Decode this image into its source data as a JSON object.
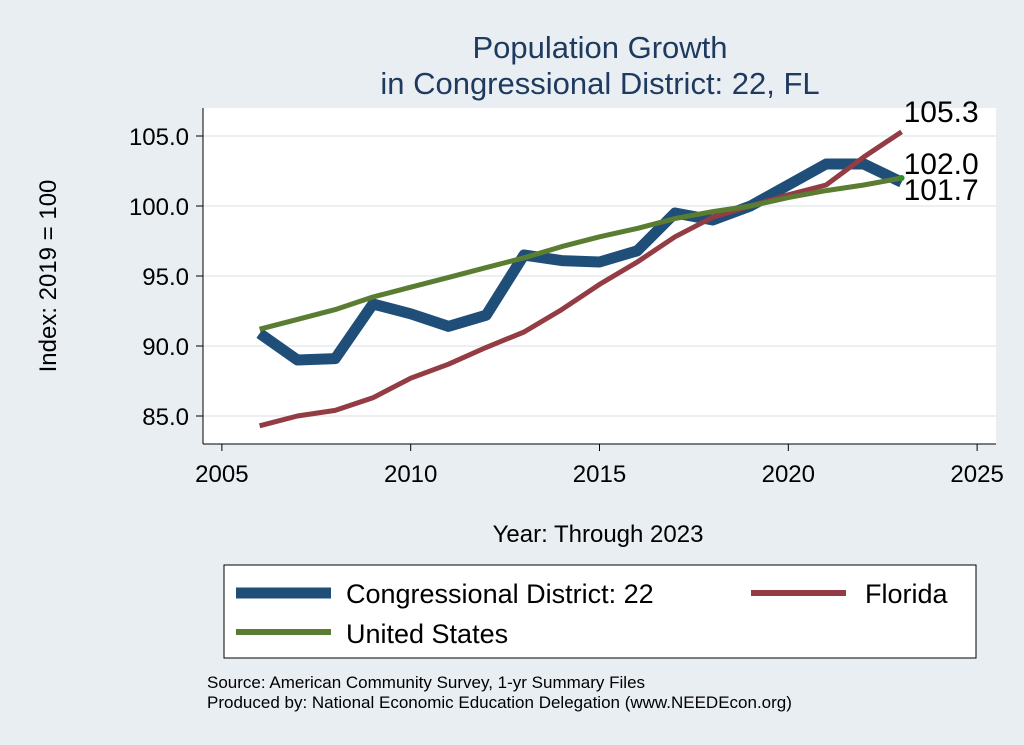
{
  "chart_data": {
    "type": "line",
    "title": [
      "Population Growth",
      "in Congressional District: 22, FL"
    ],
    "xlabel": "Year: Through 2023",
    "ylabel": "Index: 2019 = 100",
    "xlim": [
      2004.5,
      2025.5
    ],
    "ylim": [
      83.0,
      107.0
    ],
    "xticks": [
      2005,
      2010,
      2015,
      2020,
      2025
    ],
    "yticks": [
      85.0,
      90.0,
      95.0,
      100.0,
      105.0
    ],
    "ytick_labels": [
      "85.0",
      "90.0",
      "95.0",
      "100.0",
      "105.0"
    ],
    "grid": true,
    "legend_position": "bottom",
    "x": [
      2006,
      2007,
      2008,
      2009,
      2010,
      2011,
      2012,
      2013,
      2014,
      2015,
      2016,
      2017,
      2018,
      2019,
      2020,
      2021,
      2022,
      2023
    ],
    "series": [
      {
        "name": "Congressional District: 22",
        "color": "#1f4e79",
        "values": [
          90.9,
          89.0,
          89.1,
          93.0,
          92.3,
          91.4,
          92.2,
          96.5,
          96.1,
          96.0,
          96.8,
          99.5,
          99.0,
          100.0,
          101.5,
          103.0,
          103.0,
          101.7
        ],
        "end_label": "101.7"
      },
      {
        "name": "Florida",
        "color": "#943c44",
        "values": [
          84.3,
          85.0,
          85.4,
          86.3,
          87.7,
          88.7,
          89.9,
          91.0,
          92.6,
          94.4,
          96.0,
          97.8,
          99.2,
          100.0,
          100.8,
          101.5,
          103.5,
          105.3
        ],
        "end_label": "105.3"
      },
      {
        "name": "United States",
        "color": "#5a7d32",
        "values": [
          91.2,
          91.9,
          92.6,
          93.5,
          94.2,
          94.9,
          95.6,
          96.3,
          97.1,
          97.8,
          98.4,
          99.1,
          99.6,
          100.0,
          100.6,
          101.1,
          101.5,
          102.0
        ],
        "end_label": "102.0"
      }
    ],
    "source_lines": [
      "Source: American Community Survey, 1-yr Summary Files",
      "Produced by: National Economic Education Delegation (www.NEEDEcon.org)"
    ]
  }
}
